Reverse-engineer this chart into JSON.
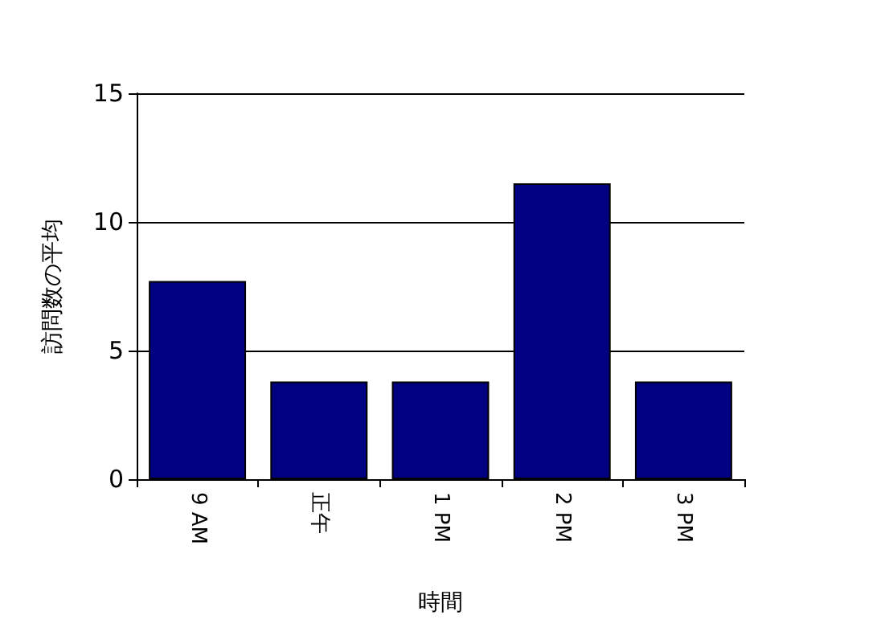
{
  "chart_data": {
    "type": "bar",
    "categories": [
      "9 AM",
      "正午",
      "1 PM",
      "2 PM",
      "3 PM"
    ],
    "values": [
      7.7,
      3.8,
      3.8,
      11.5,
      3.8
    ],
    "color": "#000080",
    "xlabel": "時間",
    "ylabel": "訪問数の平均",
    "ylim": [
      0,
      15
    ],
    "yticks": [
      0,
      5,
      10,
      15
    ],
    "grid": "y"
  }
}
